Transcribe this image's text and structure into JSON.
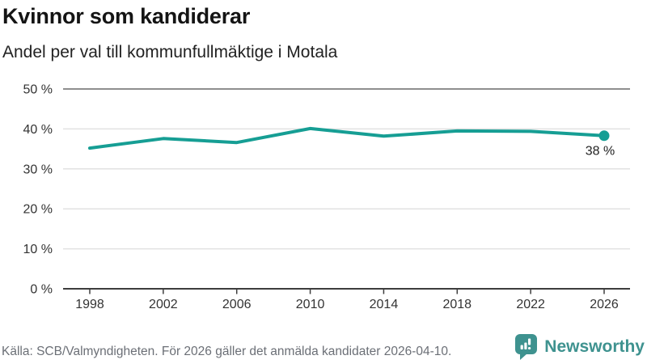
{
  "header": {
    "title": "Kvinnor som kandiderar",
    "subtitle": "Andel per val till kommunfullmäktige i Motala"
  },
  "chart_data": {
    "type": "line",
    "categories": [
      "1998",
      "2002",
      "2006",
      "2010",
      "2014",
      "2018",
      "2022",
      "2026"
    ],
    "values": [
      35.2,
      37.6,
      36.6,
      40.1,
      38.2,
      39.5,
      39.4,
      38.3
    ],
    "title": "Kvinnor som kandiderar",
    "subtitle": "Andel per val till kommunfullmäktige i Motala",
    "xlabel": "",
    "ylabel": "",
    "ylim": [
      0,
      50
    ],
    "ytick_step": 10,
    "yticks": [
      "0 %",
      "10 %",
      "20 %",
      "30 %",
      "40 %",
      "50 %"
    ],
    "grid": true,
    "legend": false,
    "end_label": "38 %"
  },
  "colors": {
    "line": "#169e94",
    "dot": "#169e94",
    "grid_light": "#e2e2e2",
    "grid_top": "#8f8f8f",
    "axis": "#3d3d3d",
    "tick_text": "#333333",
    "annotation_text": "#222222",
    "footer_text": "#6b6f76",
    "brand": "#3e928f"
  },
  "footer": {
    "source": "Källa: SCB/Valmyndigheten. För 2026 gäller det anmälda kandidater 2026-04-10.",
    "brand": "Newsworthy"
  }
}
